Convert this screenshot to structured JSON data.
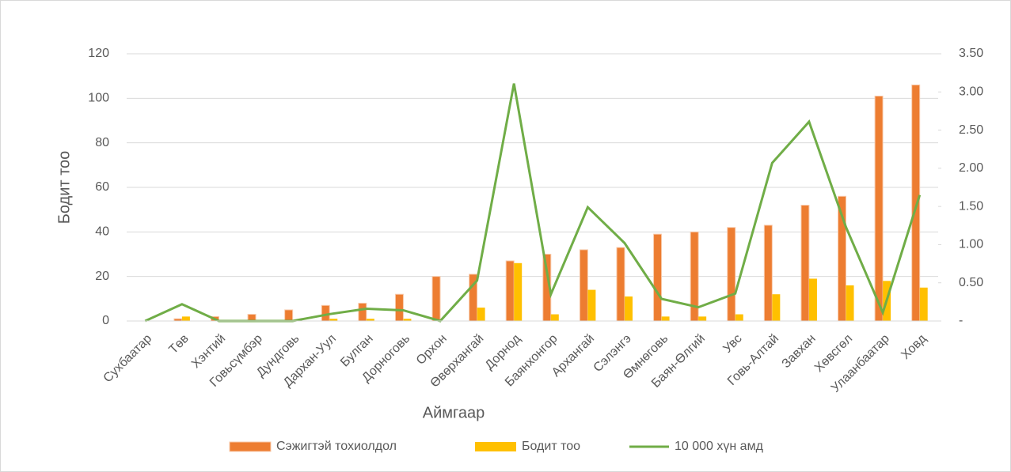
{
  "chart_data": {
    "type": "bar_line",
    "x_label": "Аймгаар",
    "y_label": "Бодит тоо",
    "categories": [
      "Сухбаатар",
      "Төв",
      "Хэнтий",
      "Говьсүмбэр",
      "Дундговь",
      "Дархан-Уул",
      "Булган",
      "Дорноговь",
      "Орхон",
      "Өвөрхангай",
      "Дорнод",
      "Баянхонгор",
      "Архангай",
      "Сэлэнгэ",
      "Өмнөговь",
      "Баян-Өлгий",
      "Увс",
      "Говь-Алтай",
      "Завхан",
      "Хөвсгөл",
      "Улаанбаатар",
      "Ховд"
    ],
    "series": [
      {
        "name": "Сэжигтэй тохиолдол",
        "type": "bar",
        "color": "#ed7d31",
        "values": [
          0,
          1,
          2,
          3,
          5,
          7,
          8,
          12,
          20,
          21,
          27,
          30,
          32,
          33,
          39,
          40,
          42,
          43,
          52,
          56,
          101,
          106
        ]
      },
      {
        "name": "Бодит тоо",
        "type": "bar",
        "color": "#ffc000",
        "values": [
          0,
          2,
          0,
          0,
          0,
          1,
          1,
          1,
          0,
          6,
          26,
          3,
          14,
          11,
          2,
          2,
          3,
          12,
          19,
          16,
          18,
          15
        ]
      },
      {
        "name": "10 000 хүн амд",
        "type": "line",
        "axis": "y2",
        "color": "#70ad47",
        "values": [
          0,
          0.22,
          0,
          0,
          0,
          0.09,
          0.16,
          0.14,
          0,
          0.53,
          3.11,
          0.35,
          1.49,
          1.02,
          0.29,
          0.18,
          0.36,
          2.07,
          2.61,
          1.23,
          0.11,
          1.65
        ]
      }
    ],
    "ylim": [
      0,
      120
    ],
    "yticks": [
      0,
      20,
      40,
      60,
      80,
      100,
      120
    ],
    "y2lim": [
      0,
      3.5
    ],
    "y2ticks": [
      {
        "value": 0,
        "label": "-"
      },
      {
        "value": 0.5,
        "label": "0.50"
      },
      {
        "value": 1,
        "label": "1.00"
      },
      {
        "value": 1.5,
        "label": "1.50"
      },
      {
        "value": 2,
        "label": "2.00"
      },
      {
        "value": 2.5,
        "label": "2.50"
      },
      {
        "value": 3,
        "label": "3.00"
      },
      {
        "value": 3.5,
        "label": "3.50"
      }
    ],
    "grid": true,
    "legend": "bottom"
  }
}
